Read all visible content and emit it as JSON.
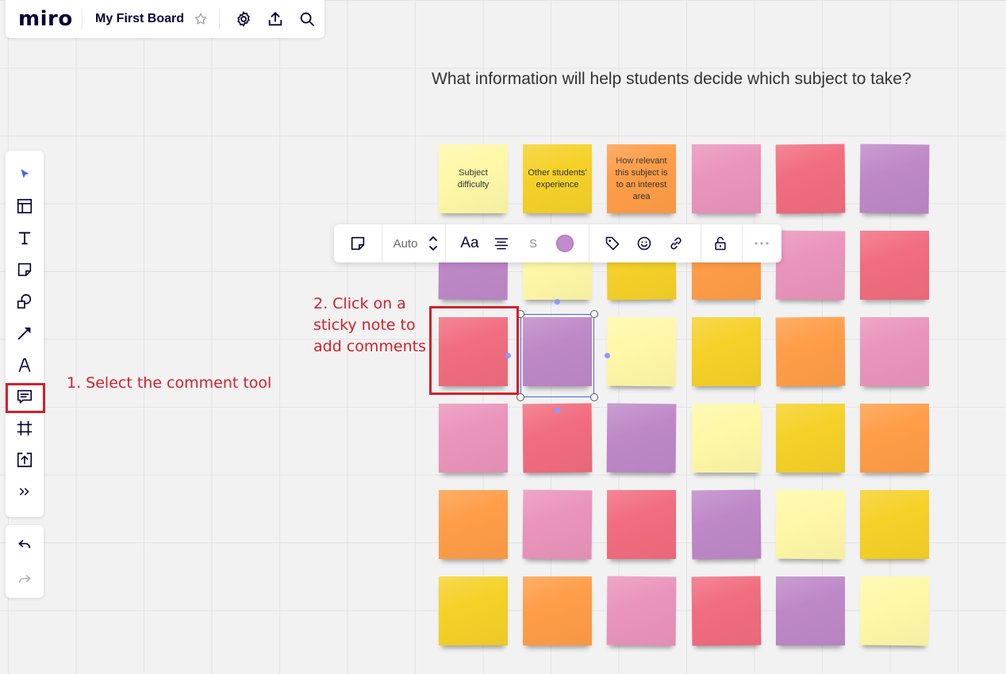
{
  "app": {
    "logo": "miro",
    "board_title": "My First Board"
  },
  "question": "What information will help students decide which subject to take?",
  "annotations": {
    "step1": "1. Select the comment tool",
    "step2_line1": "2. Click on a",
    "step2_line2": "sticky note to",
    "step2_line3": "add comments"
  },
  "context_toolbar": {
    "font_size": "Auto",
    "font_label": "Aa",
    "strike_label": "S",
    "selected_color": "#c38bcd"
  },
  "toolbar": {
    "tools": [
      "select-icon",
      "templates-icon",
      "text-icon",
      "sticky-note-icon",
      "shapes-icon",
      "arrow-icon",
      "pen-icon",
      "comment-icon",
      "frame-icon",
      "upload-icon",
      "more-tools-icon"
    ],
    "selected_color": "#4262ff"
  },
  "colors": {
    "yellow_light": "#fff8a8",
    "yellow": "#f5d128",
    "orange": "#ff9d48",
    "pink": "#ea94bb",
    "red": "#f16c7f",
    "violet": "#be88c7",
    "annotation_red": "#d3202a"
  },
  "notes": [
    [
      "Subject difficulty",
      "Other students' experience",
      "How relevant this subject is to an interest area",
      "",
      "",
      ""
    ],
    [
      "",
      "",
      "",
      "",
      "",
      ""
    ],
    [
      "",
      "",
      "",
      "",
      "",
      ""
    ],
    [
      "",
      "",
      "",
      "",
      "",
      ""
    ],
    [
      "",
      "",
      "",
      "",
      "",
      ""
    ],
    [
      "",
      "",
      "",
      "",
      "",
      ""
    ]
  ],
  "note_colors": [
    [
      "yellow_light",
      "yellow",
      "orange",
      "pink",
      "red",
      "violet"
    ],
    [
      "violet",
      "yellow_light",
      "yellow",
      "orange",
      "pink",
      "red"
    ],
    [
      "red",
      "violet",
      "yellow_light",
      "yellow",
      "orange",
      "pink"
    ],
    [
      "pink",
      "red",
      "violet",
      "yellow_light",
      "yellow",
      "orange"
    ],
    [
      "orange",
      "pink",
      "red",
      "violet",
      "yellow_light",
      "yellow"
    ],
    [
      "yellow",
      "orange",
      "pink",
      "red",
      "violet",
      "yellow_light"
    ]
  ]
}
